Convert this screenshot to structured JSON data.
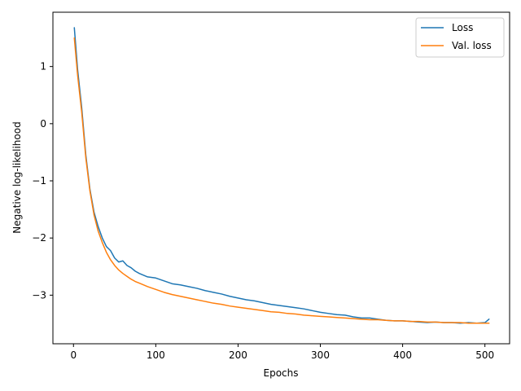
{
  "chart_data": {
    "type": "line",
    "title": "",
    "xlabel": "Epochs",
    "ylabel": "Negative log-likelihood",
    "xlim": [
      -25,
      530
    ],
    "ylim": [
      -3.85,
      1.95
    ],
    "xticks": [
      0,
      100,
      200,
      300,
      400,
      500
    ],
    "xtick_labels": [
      "0",
      "100",
      "200",
      "300",
      "400",
      "500"
    ],
    "yticks": [
      1,
      0,
      -1,
      -2,
      -3
    ],
    "ytick_labels": [
      "1",
      "0",
      "−1",
      "−2",
      "−3"
    ],
    "grid": false,
    "legend_position": "top-right",
    "series": [
      {
        "name": "Loss",
        "color": "#1f77b4",
        "x": [
          1,
          5,
          10,
          15,
          20,
          25,
          30,
          35,
          40,
          45,
          50,
          55,
          60,
          65,
          70,
          75,
          80,
          90,
          100,
          110,
          120,
          130,
          140,
          150,
          160,
          170,
          180,
          190,
          200,
          210,
          220,
          230,
          240,
          250,
          260,
          270,
          280,
          290,
          300,
          310,
          320,
          330,
          340,
          350,
          360,
          370,
          380,
          390,
          400,
          410,
          420,
          430,
          440,
          450,
          460,
          470,
          480,
          490,
          500,
          505
        ],
        "y": [
          1.68,
          0.95,
          0.28,
          -0.55,
          -1.15,
          -1.55,
          -1.8,
          -2.0,
          -2.15,
          -2.22,
          -2.35,
          -2.42,
          -2.4,
          -2.48,
          -2.52,
          -2.58,
          -2.62,
          -2.68,
          -2.7,
          -2.75,
          -2.8,
          -2.82,
          -2.85,
          -2.88,
          -2.92,
          -2.95,
          -2.98,
          -3.02,
          -3.05,
          -3.08,
          -3.1,
          -3.13,
          -3.16,
          -3.18,
          -3.2,
          -3.22,
          -3.24,
          -3.27,
          -3.3,
          -3.32,
          -3.34,
          -3.35,
          -3.38,
          -3.4,
          -3.4,
          -3.42,
          -3.44,
          -3.45,
          -3.45,
          -3.46,
          -3.47,
          -3.48,
          -3.47,
          -3.48,
          -3.48,
          -3.49,
          -3.48,
          -3.49,
          -3.48,
          -3.42
        ]
      },
      {
        "name": "Val. loss",
        "color": "#ff7f0e",
        "x": [
          1,
          5,
          10,
          15,
          20,
          25,
          30,
          35,
          40,
          45,
          50,
          55,
          60,
          65,
          70,
          75,
          80,
          90,
          100,
          110,
          120,
          130,
          140,
          150,
          160,
          170,
          180,
          190,
          200,
          210,
          220,
          230,
          240,
          250,
          260,
          270,
          280,
          290,
          300,
          310,
          320,
          330,
          340,
          350,
          360,
          370,
          380,
          390,
          400,
          410,
          420,
          430,
          440,
          450,
          460,
          470,
          480,
          490,
          500,
          505
        ],
        "y": [
          1.5,
          0.85,
          0.2,
          -0.6,
          -1.18,
          -1.6,
          -1.88,
          -2.08,
          -2.25,
          -2.38,
          -2.48,
          -2.56,
          -2.62,
          -2.67,
          -2.72,
          -2.76,
          -2.79,
          -2.85,
          -2.9,
          -2.95,
          -2.99,
          -3.02,
          -3.05,
          -3.08,
          -3.11,
          -3.14,
          -3.16,
          -3.19,
          -3.21,
          -3.23,
          -3.25,
          -3.27,
          -3.29,
          -3.3,
          -3.32,
          -3.33,
          -3.35,
          -3.36,
          -3.37,
          -3.38,
          -3.39,
          -3.4,
          -3.41,
          -3.42,
          -3.43,
          -3.43,
          -3.44,
          -3.45,
          -3.45,
          -3.46,
          -3.46,
          -3.47,
          -3.47,
          -3.48,
          -3.48,
          -3.48,
          -3.49,
          -3.49,
          -3.49,
          -3.49
        ]
      }
    ]
  }
}
